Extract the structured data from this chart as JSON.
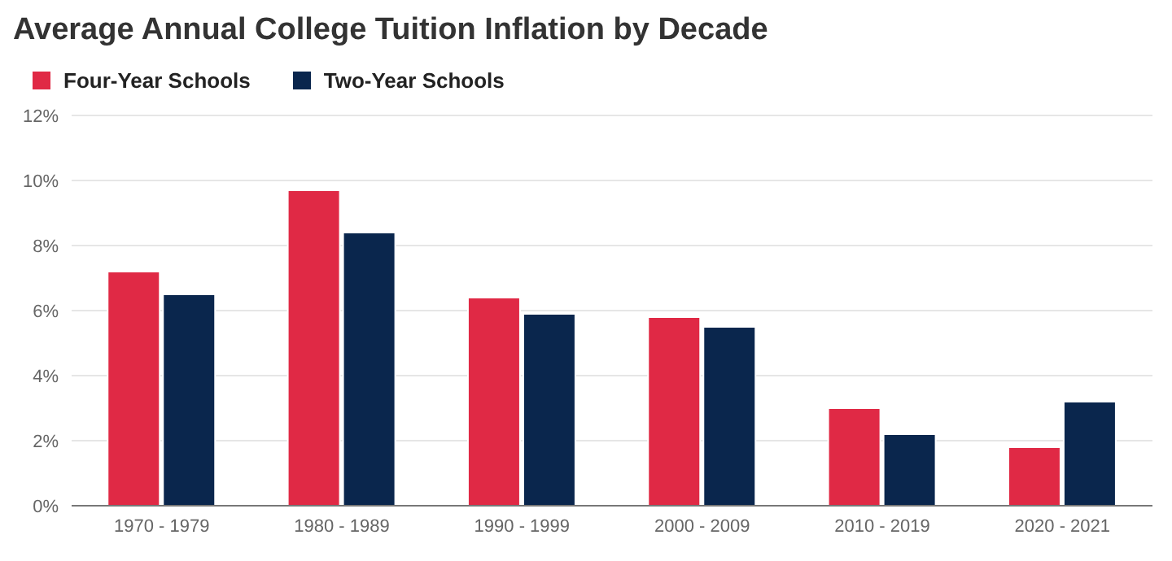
{
  "chart_data": {
    "type": "bar",
    "title": "Average Annual College Tuition Inflation by Decade",
    "categories": [
      "1970 - 1979",
      "1980 - 1989",
      "1990 - 1999",
      "2000 - 2009",
      "2010 - 2019",
      "2020 - 2021"
    ],
    "series": [
      {
        "name": "Four-Year Schools",
        "color": "#e02945",
        "values": [
          7.2,
          9.7,
          6.4,
          5.8,
          3.0,
          1.8
        ]
      },
      {
        "name": "Two-Year Schools",
        "color": "#0a264d",
        "values": [
          6.5,
          8.4,
          5.9,
          5.5,
          2.2,
          3.2
        ]
      }
    ],
    "ylim": [
      0,
      12
    ],
    "yticks": [
      {
        "value": 0,
        "label": "0%"
      },
      {
        "value": 2,
        "label": "2%"
      },
      {
        "value": 4,
        "label": "4%"
      },
      {
        "value": 6,
        "label": "6%"
      },
      {
        "value": 8,
        "label": "8%"
      },
      {
        "value": 10,
        "label": "10%"
      },
      {
        "value": 12,
        "label": "12%"
      }
    ],
    "grid": "y",
    "legend": "top left"
  }
}
